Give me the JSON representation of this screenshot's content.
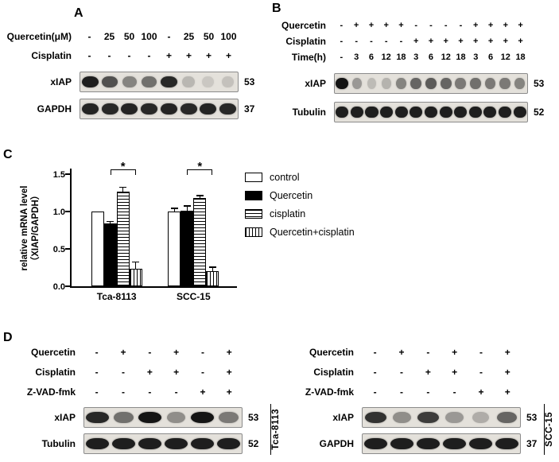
{
  "panelA": {
    "label": "A",
    "rows": [
      {
        "label": "Quercetin(μM)",
        "values": [
          "-",
          "25",
          "50",
          "100",
          "-",
          "25",
          "50",
          "100"
        ]
      },
      {
        "label": "Cisplatin",
        "values": [
          "-",
          "-",
          "-",
          "-",
          "+",
          "+",
          "+",
          "+"
        ]
      }
    ],
    "blots": [
      {
        "label": "xIAP",
        "mw": "53",
        "bands": [
          0.95,
          0.7,
          0.45,
          0.55,
          0.9,
          0.2,
          0.12,
          0.15
        ]
      },
      {
        "label": "GAPDH",
        "mw": "37",
        "bands": [
          0.92,
          0.9,
          0.92,
          0.9,
          0.92,
          0.9,
          0.92,
          0.9
        ]
      }
    ]
  },
  "panelB": {
    "label": "B",
    "rows": [
      {
        "label": "Quercetin",
        "values": [
          "-",
          "+",
          "+",
          "+",
          "+",
          "-",
          "-",
          "-",
          "-",
          "+",
          "+",
          "+",
          "+"
        ]
      },
      {
        "label": "Cisplatin",
        "values": [
          "-",
          "-",
          "-",
          "-",
          "-",
          "+",
          "+",
          "+",
          "+",
          "+",
          "+",
          "+",
          "+"
        ]
      },
      {
        "label": "Time(h)",
        "values": [
          "-",
          "3",
          "6",
          "12",
          "18",
          "3",
          "6",
          "12",
          "18",
          "3",
          "6",
          "12",
          "18"
        ]
      }
    ],
    "blots": [
      {
        "label": "xIAP",
        "mw": "53",
        "bands": [
          1,
          0.35,
          0.18,
          0.22,
          0.45,
          0.6,
          0.65,
          0.6,
          0.5,
          0.55,
          0.5,
          0.5,
          0.45
        ]
      },
      {
        "label": "Tubulin",
        "mw": "52",
        "bands": [
          0.95,
          0.95,
          0.95,
          0.95,
          0.95,
          0.95,
          0.95,
          0.95,
          0.95,
          0.95,
          0.95,
          0.95,
          0.95
        ]
      }
    ]
  },
  "panelC": {
    "label": "C"
  },
  "chart_data": {
    "type": "bar",
    "categories": [
      "Tca-8113",
      "SCC-15"
    ],
    "series": [
      {
        "name": "control",
        "fill": "white",
        "values": [
          1.0,
          1.0
        ],
        "errors": [
          0.0,
          0.04
        ]
      },
      {
        "name": "Quercetin",
        "fill": "black",
        "values": [
          0.84,
          1.01
        ],
        "errors": [
          0.02,
          0.06
        ]
      },
      {
        "name": "cisplatin",
        "fill": "hlines",
        "values": [
          1.27,
          1.18
        ],
        "errors": [
          0.05,
          0.03
        ]
      },
      {
        "name": "Quercetin+cisplatin",
        "fill": "vlines",
        "values": [
          0.23,
          0.2
        ],
        "errors": [
          0.09,
          0.05
        ]
      }
    ],
    "ylabel_lines": [
      "relative mRNA level",
      "（XIAP/GAPDH）"
    ],
    "xlabel": "",
    "title": "",
    "yticks": [
      0,
      0.5,
      1.0,
      1.5
    ],
    "ytick_labels": [
      "0.0",
      "0.5",
      "1.0",
      "1.5"
    ],
    "ylim": [
      0,
      1.6
    ],
    "grid": false,
    "legend_position": "right",
    "comparisons": [
      {
        "category": 0,
        "from": 1,
        "to": 3,
        "label": "*"
      },
      {
        "category": 1,
        "from": 1,
        "to": 3,
        "label": "*"
      }
    ]
  },
  "panelD": {
    "label": "D",
    "left": {
      "cell_line": "Tca-8113",
      "rows": [
        {
          "label": "Quercetin",
          "values": [
            "-",
            "+",
            "-",
            "+",
            "-",
            "+"
          ]
        },
        {
          "label": "Cisplatin",
          "values": [
            "-",
            "-",
            "+",
            "+",
            "-",
            "+"
          ]
        },
        {
          "label": "Z-VAD-fmk",
          "values": [
            "-",
            "-",
            "-",
            "-",
            "+",
            "+"
          ]
        }
      ],
      "blots": [
        {
          "label": "xIAP",
          "mw": "53",
          "bands": [
            0.9,
            0.55,
            1,
            0.4,
            1,
            0.5
          ]
        },
        {
          "label": "Tubulin",
          "mw": "52",
          "bands": [
            0.95,
            0.95,
            0.95,
            0.95,
            0.95,
            0.95
          ]
        }
      ]
    },
    "right": {
      "cell_line": "SCC-15",
      "rows": [
        {
          "label": "Quercetin",
          "values": [
            "-",
            "+",
            "-",
            "+",
            "-",
            "+"
          ]
        },
        {
          "label": "Cisplatin",
          "values": [
            "-",
            "-",
            "+",
            "+",
            "-",
            "+"
          ]
        },
        {
          "label": "Z-VAD-fmk",
          "values": [
            "-",
            "-",
            "-",
            "-",
            "+",
            "+"
          ]
        }
      ],
      "blots": [
        {
          "label": "xIAP",
          "mw": "53",
          "bands": [
            0.85,
            0.4,
            0.8,
            0.35,
            0.25,
            0.6
          ]
        },
        {
          "label": "GAPDH",
          "mw": "37",
          "bands": [
            0.95,
            0.95,
            0.95,
            0.95,
            0.95,
            0.95
          ]
        }
      ]
    }
  }
}
